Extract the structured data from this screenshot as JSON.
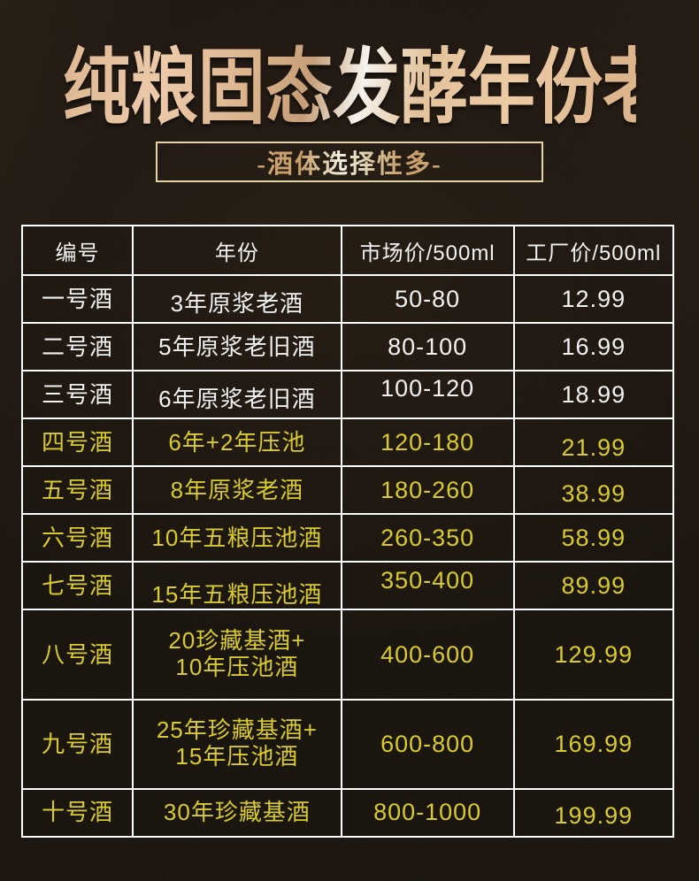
{
  "poster": {
    "title": "纯粮固态发酵年份老酒",
    "subtitle": "-酒体选择性多-"
  },
  "table": {
    "columns": [
      "编号",
      "年份",
      "市场价/500ml",
      "工厂价/500ml"
    ],
    "rows": [
      {
        "no": "一号酒",
        "vintage": "3年原浆老酒",
        "market": "50-80",
        "factory": "12.99",
        "tone": "white"
      },
      {
        "no": "二号酒",
        "vintage": "5年原浆老旧酒",
        "market": "80-100",
        "factory": "16.99",
        "tone": "white"
      },
      {
        "no": "三号酒",
        "vintage": "6年原浆老旧酒",
        "market": "100-120",
        "factory": "18.99",
        "tone": "white"
      },
      {
        "no": "四号酒",
        "vintage": "6年+2年压池",
        "market": "120-180",
        "factory": "21.99",
        "tone": "yellow"
      },
      {
        "no": "五号酒",
        "vintage": "8年原浆老酒",
        "market": "180-260",
        "factory": "38.99",
        "tone": "yellow"
      },
      {
        "no": "六号酒",
        "vintage": "10年五粮压池酒",
        "market": "260-350",
        "factory": "58.99",
        "tone": "yellow"
      },
      {
        "no": "七号酒",
        "vintage": "15年五粮压池酒",
        "market": "350-400",
        "factory": "89.99",
        "tone": "yellow"
      },
      {
        "no": "八号酒",
        "vintage": "20珍藏基酒+\n10年压池酒",
        "market": "400-600",
        "factory": "129.99",
        "tone": "yellow"
      },
      {
        "no": "九号酒",
        "vintage": "25年珍藏基酒+\n15年压池酒",
        "market": "600-800",
        "factory": "169.99",
        "tone": "yellow"
      },
      {
        "no": "十号酒",
        "vintage": "30年珍藏基酒",
        "market": "800-1000",
        "factory": "199.99",
        "tone": "yellow"
      }
    ]
  },
  "colors": {
    "background": "#1d1610",
    "table_border": "#ffffff",
    "white_text": "#f2f2f2",
    "yellow_text": "#d8cb2b",
    "gold_accent": "#e6c9a8",
    "subtitle_border": "#e5d4a9"
  }
}
